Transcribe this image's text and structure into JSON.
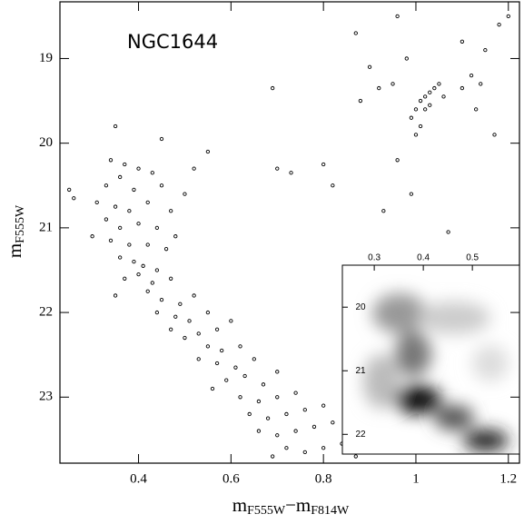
{
  "chart_data": {
    "type": "scatter",
    "title": "NGC1644",
    "xlabel": [
      "m",
      "F555W",
      "−m",
      "F814W"
    ],
    "ylabel": [
      "m",
      "F555W"
    ],
    "xlim": [
      0.23,
      1.224
    ],
    "ylim": [
      23.78,
      18.33
    ],
    "xticks": [
      0.4,
      0.6,
      0.8,
      1,
      1.2
    ],
    "yticks": [
      19,
      20,
      21,
      22,
      23
    ],
    "series": [
      {
        "name": "stars",
        "color": "#000000",
        "x": [
          0.34,
          0.37,
          0.4,
          0.43,
          0.36,
          0.33,
          0.39,
          0.45,
          0.31,
          0.35,
          0.38,
          0.42,
          0.47,
          0.33,
          0.36,
          0.4,
          0.44,
          0.3,
          0.34,
          0.38,
          0.42,
          0.46,
          0.5,
          0.52,
          0.48,
          0.36,
          0.39,
          0.41,
          0.44,
          0.37,
          0.4,
          0.43,
          0.47,
          0.35,
          0.42,
          0.45,
          0.49,
          0.52,
          0.44,
          0.48,
          0.51,
          0.55,
          0.47,
          0.53,
          0.57,
          0.6,
          0.5,
          0.55,
          0.58,
          0.62,
          0.53,
          0.57,
          0.61,
          0.65,
          0.59,
          0.63,
          0.67,
          0.56,
          0.7,
          0.62,
          0.66,
          0.7,
          0.74,
          0.64,
          0.68,
          0.72,
          0.76,
          0.8,
          0.66,
          0.7,
          0.74,
          0.78,
          0.82,
          0.72,
          0.76,
          0.8,
          0.84,
          0.69,
          0.87,
          0.25,
          0.26,
          0.35,
          0.45,
          0.55,
          0.69,
          0.7,
          0.73,
          0.8,
          0.82,
          0.87,
          0.88,
          0.9,
          0.92,
          0.95,
          0.96,
          0.98,
          1.0,
          1.01,
          1.02,
          1.03,
          1.04,
          1.05,
          1.02,
          0.99,
          1.0,
          1.03,
          1.06,
          1.01,
          0.96,
          1.1,
          1.12,
          1.14,
          1.1,
          1.15,
          1.18,
          1.2,
          1.13,
          1.17,
          0.93,
          0.99,
          1.07
        ],
        "values": [
          20.2,
          20.25,
          20.3,
          20.35,
          20.4,
          20.5,
          20.55,
          20.5,
          20.7,
          20.75,
          20.8,
          20.7,
          20.8,
          20.9,
          21.0,
          20.95,
          21.0,
          21.1,
          21.15,
          21.2,
          21.2,
          21.25,
          20.6,
          20.3,
          21.1,
          21.35,
          21.4,
          21.45,
          21.5,
          21.6,
          21.55,
          21.65,
          21.6,
          21.8,
          21.75,
          21.85,
          21.9,
          21.8,
          22.0,
          22.05,
          22.1,
          22.0,
          22.2,
          22.25,
          22.2,
          22.1,
          22.3,
          22.4,
          22.45,
          22.4,
          22.55,
          22.6,
          22.65,
          22.55,
          22.8,
          22.75,
          22.85,
          22.9,
          22.7,
          23.0,
          23.05,
          23.0,
          22.95,
          23.2,
          23.25,
          23.2,
          23.15,
          23.1,
          23.4,
          23.45,
          23.4,
          23.35,
          23.3,
          23.6,
          23.65,
          23.6,
          23.55,
          23.7,
          23.7,
          20.55,
          20.65,
          19.8,
          19.95,
          20.1,
          19.35,
          20.3,
          20.35,
          20.25,
          20.5,
          18.7,
          19.5,
          19.1,
          19.35,
          19.3,
          18.5,
          19.0,
          19.6,
          19.5,
          19.45,
          19.4,
          19.35,
          19.3,
          19.6,
          19.7,
          19.9,
          19.55,
          19.45,
          19.8,
          20.2,
          19.35,
          19.2,
          19.3,
          18.8,
          18.9,
          18.6,
          18.5,
          19.6,
          19.9,
          20.8,
          20.6,
          21.05
        ]
      }
    ],
    "inset": {
      "xlim": [
        0.235,
        0.596
      ],
      "ylim": [
        22.31,
        19.34
      ],
      "xticks": [
        0.3,
        0.4,
        0.5
      ],
      "yticks": [
        20,
        21,
        22
      ]
    }
  }
}
